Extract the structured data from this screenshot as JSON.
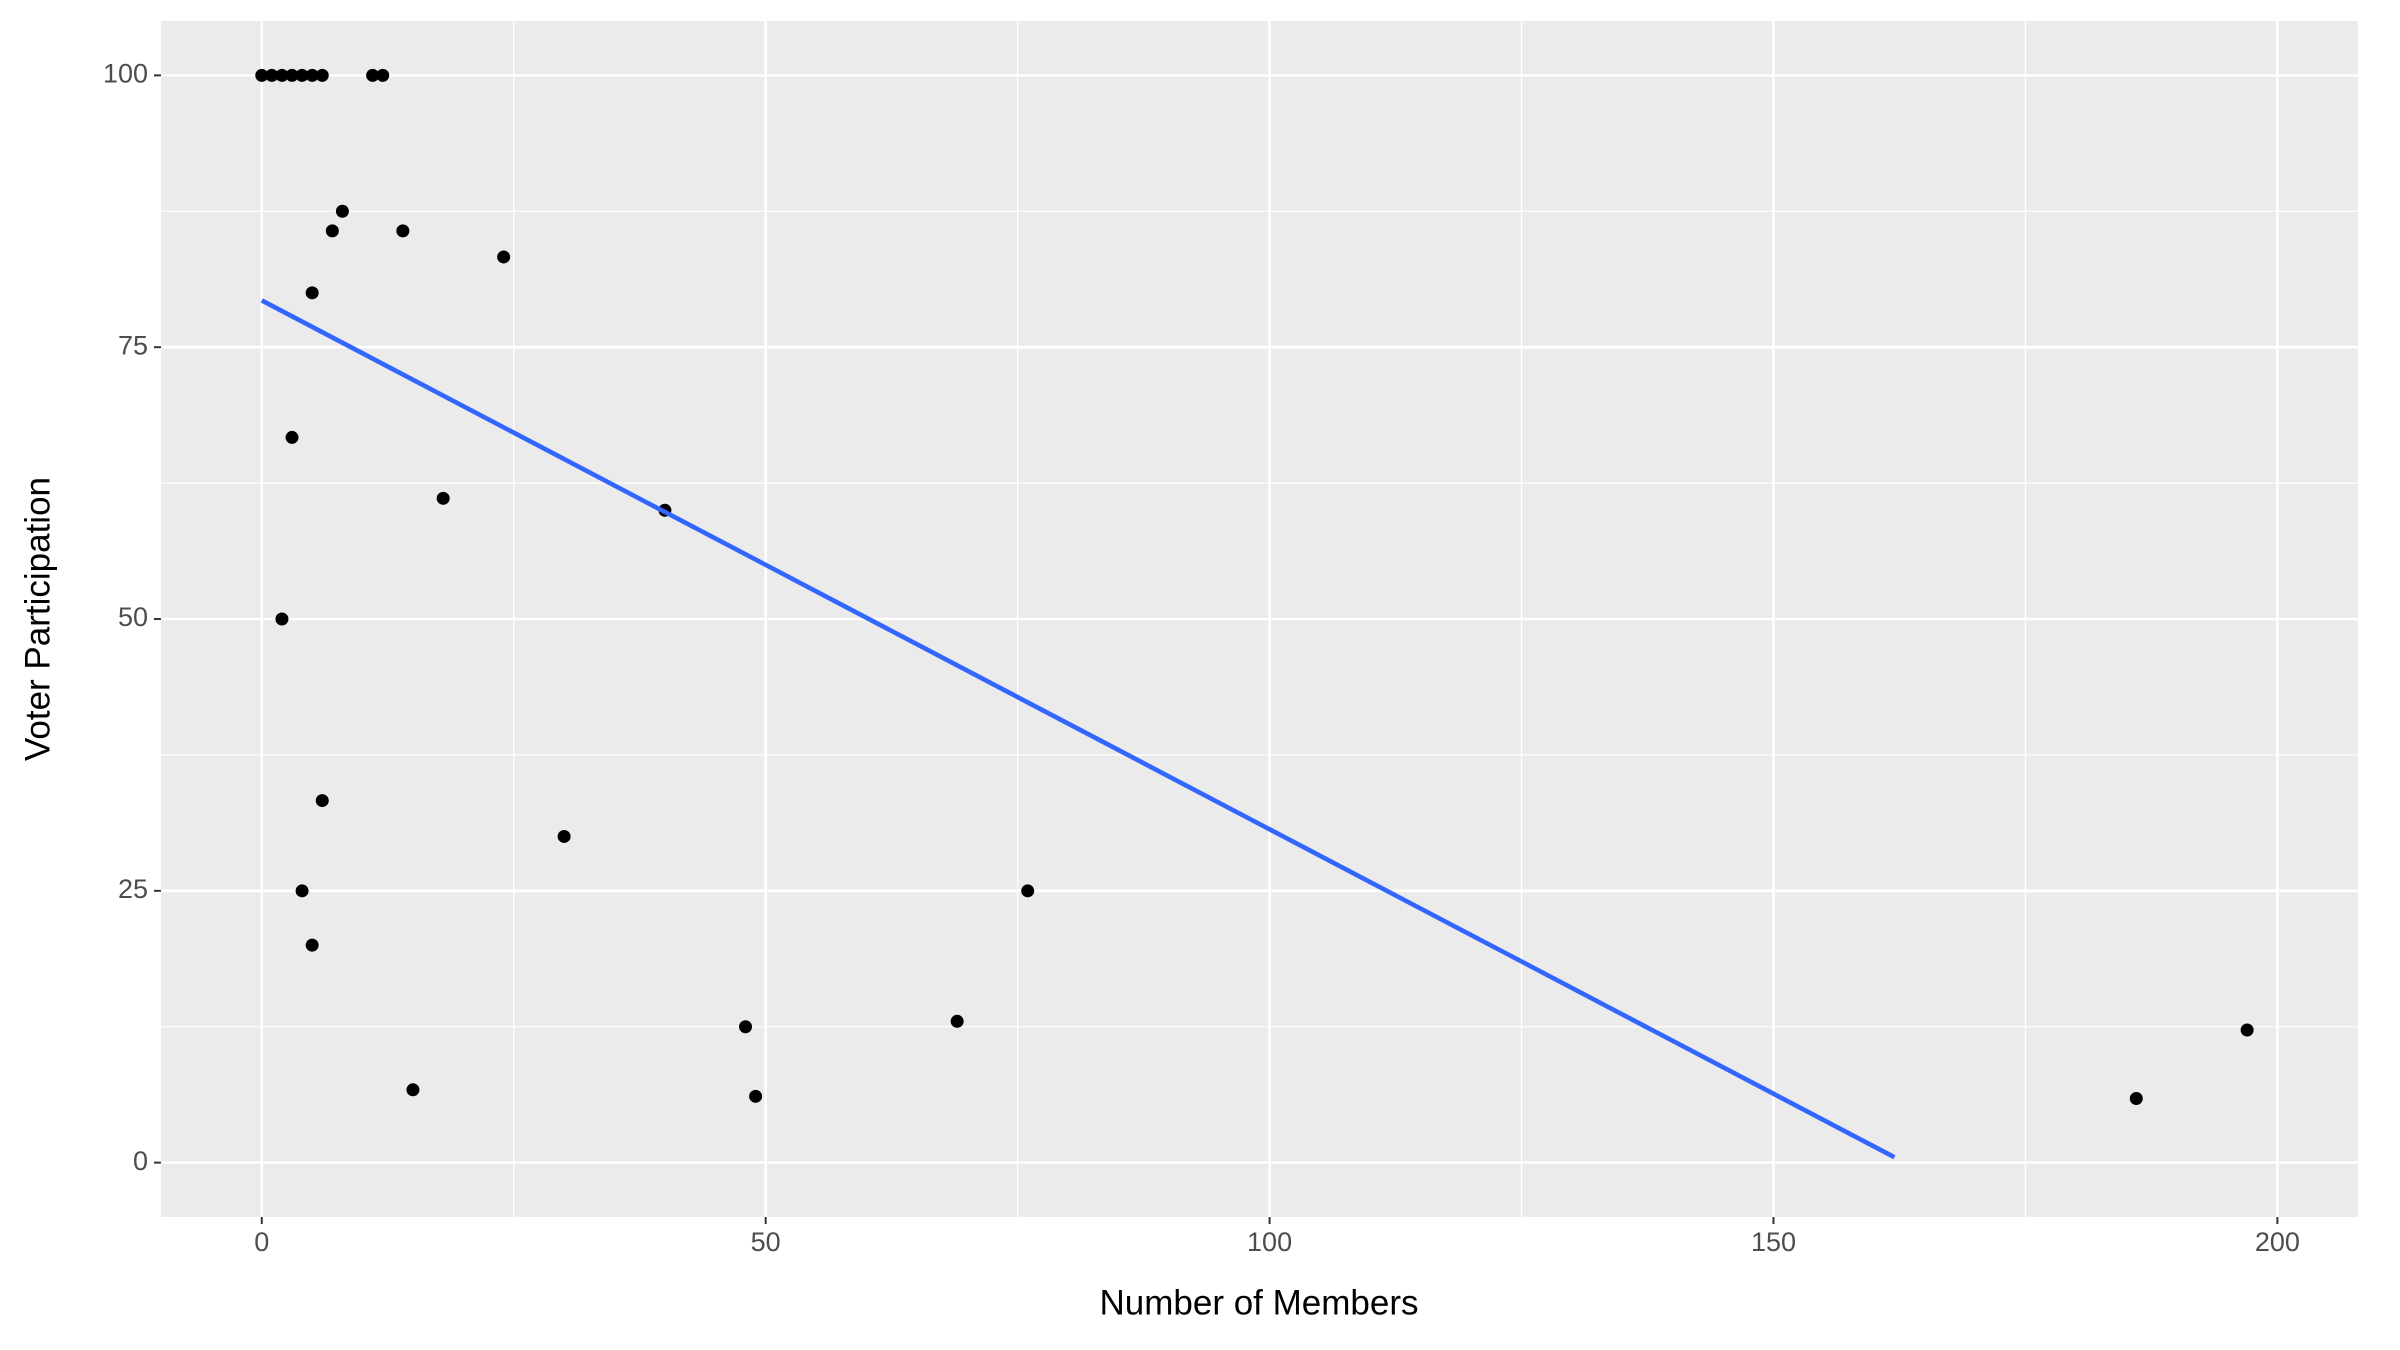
{
  "chart_data": {
    "type": "scatter",
    "xlabel": "Number of Members",
    "ylabel": "Voter Participation",
    "xlim": [
      -10,
      208
    ],
    "ylim": [
      -5,
      105
    ],
    "xticks": [
      0,
      50,
      100,
      150,
      200
    ],
    "yticks": [
      0,
      25,
      50,
      75,
      100
    ],
    "grid": true,
    "minor_grid": true,
    "series": [
      {
        "type": "scatter",
        "color": "#000000",
        "x": [
          0,
          1,
          2,
          3,
          4,
          5,
          6,
          11,
          12,
          8,
          7,
          14,
          24,
          5,
          3,
          18,
          40,
          2,
          6,
          30,
          4,
          76,
          5,
          15,
          48,
          69,
          49,
          186,
          197
        ],
        "values": [
          100,
          100,
          100,
          100,
          100,
          100,
          100,
          100,
          100,
          87.5,
          85.7,
          85.7,
          83.3,
          80,
          66.7,
          61.1,
          60,
          50,
          33.3,
          30,
          25,
          25,
          20,
          6.7,
          12.5,
          13,
          6.1,
          5.9,
          12.2
        ]
      },
      {
        "type": "line",
        "color": "#3366ff",
        "x": [
          0,
          162
        ],
        "values": [
          79.3,
          0.5
        ]
      }
    ]
  }
}
